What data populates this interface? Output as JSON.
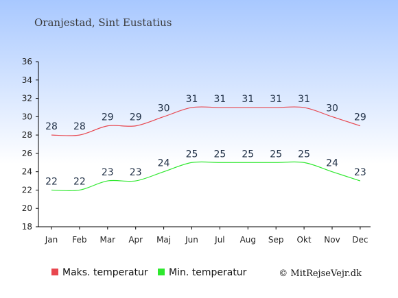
{
  "chart_data": {
    "type": "line",
    "title": "Oranjestad, Sint Eustatius",
    "categories": [
      "Jan",
      "Feb",
      "Mar",
      "Apr",
      "Maj",
      "Jun",
      "Jul",
      "Aug",
      "Sep",
      "Okt",
      "Nov",
      "Dec"
    ],
    "series": [
      {
        "name": "Maks. temperatur",
        "color": "#e8474f",
        "values": [
          28,
          28,
          29,
          29,
          30,
          31,
          31,
          31,
          31,
          31,
          30,
          29
        ]
      },
      {
        "name": "Min. temperatur",
        "color": "#2ee82e",
        "values": [
          22,
          22,
          23,
          23,
          24,
          25,
          25,
          25,
          25,
          25,
          24,
          23
        ]
      }
    ],
    "ylim": [
      18,
      36
    ],
    "yticks": [
      18,
      20,
      22,
      24,
      26,
      28,
      30,
      32,
      34,
      36
    ],
    "grid": false,
    "legend_position": "bottom"
  },
  "credit": "© MitRejseVejr.dk",
  "colors": {
    "background_top": "#a8c8ff",
    "background_bottom": "#ffffff",
    "axis": "#000000"
  }
}
